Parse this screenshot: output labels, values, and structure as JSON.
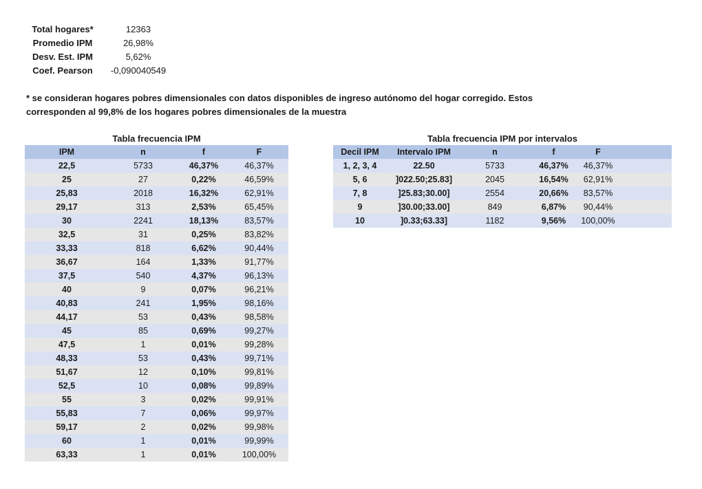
{
  "summary": [
    {
      "label": "Total hogares*",
      "value": "12363"
    },
    {
      "label": "Promedio IPM",
      "value": "26,98%"
    },
    {
      "label": "Desv. Est. IPM",
      "value": "5,62%"
    },
    {
      "label": "Coef. Pearson",
      "value": "-0,090040549"
    }
  ],
  "note": "* se consideran hogares pobres dimensionales con datos disponibles de ingreso autónomo del hogar corregido. Estos corresponden al 99,8% de los hogares pobres dimensionales de la muestra",
  "table1": {
    "title": "Tabla frecuencia IPM",
    "headers": [
      "IPM",
      "n",
      "f",
      "F"
    ],
    "rows": [
      [
        "22,5",
        "5733",
        "46,37%",
        "46,37%"
      ],
      [
        "25",
        "27",
        "0,22%",
        "46,59%"
      ],
      [
        "25,83",
        "2018",
        "16,32%",
        "62,91%"
      ],
      [
        "29,17",
        "313",
        "2,53%",
        "65,45%"
      ],
      [
        "30",
        "2241",
        "18,13%",
        "83,57%"
      ],
      [
        "32,5",
        "31",
        "0,25%",
        "83,82%"
      ],
      [
        "33,33",
        "818",
        "6,62%",
        "90,44%"
      ],
      [
        "36,67",
        "164",
        "1,33%",
        "91,77%"
      ],
      [
        "37,5",
        "540",
        "4,37%",
        "96,13%"
      ],
      [
        "40",
        "9",
        "0,07%",
        "96,21%"
      ],
      [
        "40,83",
        "241",
        "1,95%",
        "98,16%"
      ],
      [
        "44,17",
        "53",
        "0,43%",
        "98,58%"
      ],
      [
        "45",
        "85",
        "0,69%",
        "99,27%"
      ],
      [
        "47,5",
        "1",
        "0,01%",
        "99,28%"
      ],
      [
        "48,33",
        "53",
        "0,43%",
        "99,71%"
      ],
      [
        "51,67",
        "12",
        "0,10%",
        "99,81%"
      ],
      [
        "52,5",
        "10",
        "0,08%",
        "99,89%"
      ],
      [
        "55",
        "3",
        "0,02%",
        "99,91%"
      ],
      [
        "55,83",
        "7",
        "0,06%",
        "99,97%"
      ],
      [
        "59,17",
        "2",
        "0,02%",
        "99,98%"
      ],
      [
        "60",
        "1",
        "0,01%",
        "99,99%"
      ],
      [
        "63,33",
        "1",
        "0,01%",
        "100,00%"
      ]
    ]
  },
  "table2": {
    "title": "Tabla frecuencia IPM por intervalos",
    "headers": [
      "Decil IPM",
      "Intervalo IPM",
      "n",
      "f",
      "F"
    ],
    "rows": [
      [
        "1, 2, 3, 4",
        "22.50",
        "5733",
        "46,37%",
        "46,37%"
      ],
      [
        "5, 6",
        "]022.50;25.83]",
        "2045",
        "16,54%",
        "62,91%"
      ],
      [
        "7, 8",
        "]25.83;30.00]",
        "2554",
        "20,66%",
        "83,57%"
      ],
      [
        "9",
        "]30.00;33.00]",
        "849",
        "6,87%",
        "90,44%"
      ],
      [
        "10",
        "]0.33;63.33]",
        "1182",
        "9,56%",
        "100,00%"
      ]
    ]
  },
  "colors": {
    "header_bg": "#b4c6e7",
    "row_blue": "#d9e1f2",
    "row_gray": "#e7e6e6"
  }
}
